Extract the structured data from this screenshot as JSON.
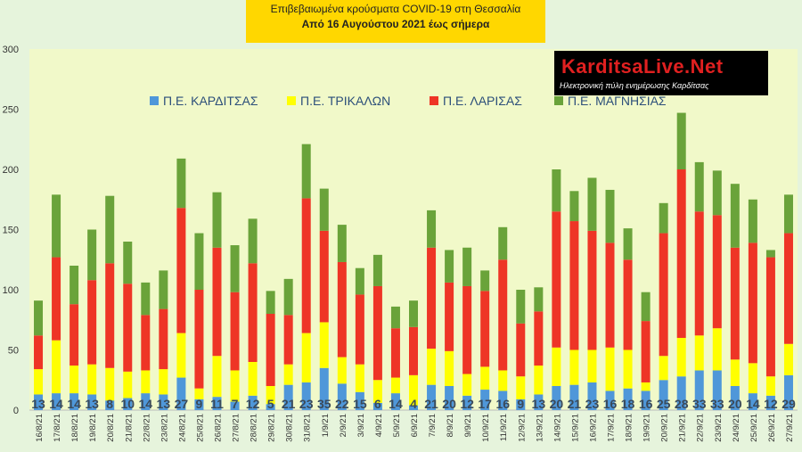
{
  "header": {
    "title_line1": "Επιβεβαιωμένα κρούσματα COVID-19 στη Θεσσαλία",
    "title_line2": "Από 16 Αυγούστου 2021 έως σήμερα"
  },
  "logo": {
    "name": "KarditsaLive.Net",
    "tagline": "Ηλεκτρονική πύλη ενημέρωσης Καρδίτσας"
  },
  "chart_data": {
    "type": "bar",
    "stacked": true,
    "title": "Επιβεβαιωμένα κρούσματα COVID-19 στη Θεσσαλία",
    "subtitle": "Από 16 Αυγούστου 2021 έως σήμερα",
    "xlabel": "",
    "ylabel": "",
    "ylim": [
      0,
      300
    ],
    "yticks": [
      0,
      50,
      100,
      150,
      200,
      250,
      300
    ],
    "grid": false,
    "legend_position": "top",
    "categories": [
      "16/8/21",
      "17/8/21",
      "18/8/21",
      "19/8/21",
      "20/8/21",
      "21/8/21",
      "22/8/21",
      "23/8/21",
      "24/8/21",
      "25/8/21",
      "26/8/21",
      "27/8/21",
      "28/8/21",
      "29/8/21",
      "30/8/21",
      "31/8/21",
      "1/9/21",
      "2/9/21",
      "3/9/21",
      "4/9/21",
      "5/9/21",
      "6/9/21",
      "7/9/21",
      "8/9/21",
      "9/9/21",
      "10/9/21",
      "11/9/21",
      "12/9/21",
      "13/9/21",
      "14/9/21",
      "15/9/21",
      "16/9/21",
      "17/9/21",
      "18/9/21",
      "19/9/21",
      "20/9/21",
      "21/9/21",
      "22/9/21",
      "23/9/21",
      "24/9/21",
      "25/9/21",
      "26/9/21",
      "27/9/21"
    ],
    "series": [
      {
        "name": "Π.Ε. ΚΑΡΔΙΤΣΑΣ",
        "color": "#4f97d9",
        "show_labels": true,
        "values": [
          13,
          14,
          14,
          13,
          8,
          10,
          14,
          13,
          27,
          9,
          11,
          7,
          12,
          5,
          21,
          23,
          35,
          22,
          15,
          6,
          14,
          4,
          21,
          20,
          12,
          17,
          16,
          9,
          13,
          20,
          21,
          23,
          16,
          18,
          16,
          25,
          28,
          33,
          33,
          20,
          14,
          12,
          29
        ]
      },
      {
        "name": "Π.Ε. ΤΡΙΚΑΛΩΝ",
        "color": "#ffff00",
        "values": [
          21,
          44,
          23,
          25,
          27,
          22,
          19,
          21,
          37,
          9,
          34,
          26,
          28,
          15,
          17,
          41,
          38,
          22,
          23,
          19,
          13,
          25,
          30,
          29,
          18,
          19,
          17,
          19,
          24,
          32,
          29,
          27,
          36,
          32,
          7,
          20,
          32,
          29,
          35,
          22,
          25,
          16,
          26
        ]
      },
      {
        "name": "Π.Ε. ΛΑΡΙΣΑΣ",
        "color": "#ee3526",
        "values": [
          28,
          69,
          51,
          70,
          87,
          73,
          46,
          50,
          104,
          82,
          90,
          65,
          82,
          60,
          41,
          112,
          76,
          79,
          58,
          78,
          41,
          40,
          84,
          57,
          73,
          63,
          92,
          44,
          45,
          113,
          107,
          99,
          87,
          75,
          51,
          102,
          140,
          103,
          94,
          93,
          100,
          99,
          92
        ]
      },
      {
        "name": "Π.Ε. ΜΑΓΝΗΣΙΑΣ",
        "color": "#6aa33a",
        "values": [
          29,
          52,
          32,
          42,
          56,
          35,
          27,
          32,
          41,
          47,
          46,
          39,
          37,
          19,
          30,
          45,
          35,
          31,
          22,
          26,
          18,
          22,
          31,
          27,
          32,
          17,
          27,
          28,
          20,
          35,
          25,
          44,
          44,
          26,
          24,
          25,
          47,
          41,
          37,
          53,
          36,
          6,
          32
        ]
      }
    ]
  }
}
